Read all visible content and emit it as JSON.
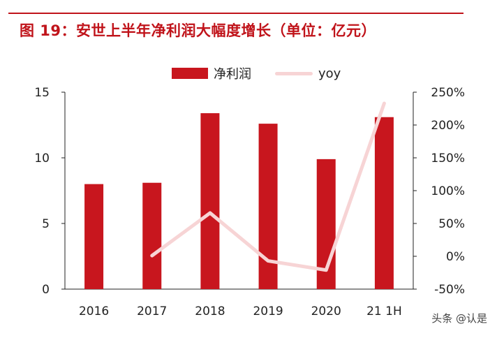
{
  "title": "图 19：安世上半年净利润大幅度增长（单位：亿元）",
  "watermark": "头条 @认是",
  "colors": {
    "accent": "#c0131a",
    "bar": "#c8161e",
    "line": "#f7d4d5",
    "axis": "#222222"
  },
  "chart_data": {
    "type": "bar",
    "categories": [
      "2016",
      "2017",
      "2018",
      "2019",
      "2020",
      "21 1H"
    ],
    "series": [
      {
        "name": "净利润",
        "type": "bar",
        "axis": "left",
        "values": [
          8.0,
          8.1,
          13.4,
          12.6,
          9.9,
          13.1
        ]
      },
      {
        "name": "yoy",
        "type": "line",
        "axis": "right",
        "values": [
          null,
          0.01,
          0.66,
          -0.07,
          -0.21,
          2.33
        ]
      }
    ],
    "ylim_left": [
      0,
      15
    ],
    "yticks_left": [
      0,
      5,
      10,
      15
    ],
    "ylim_right": [
      -0.5,
      2.5
    ],
    "yticks_right": [
      "-50%",
      "0%",
      "50%",
      "100%",
      "150%",
      "200%",
      "250%"
    ],
    "legend_position": "top-center",
    "grid": false
  }
}
